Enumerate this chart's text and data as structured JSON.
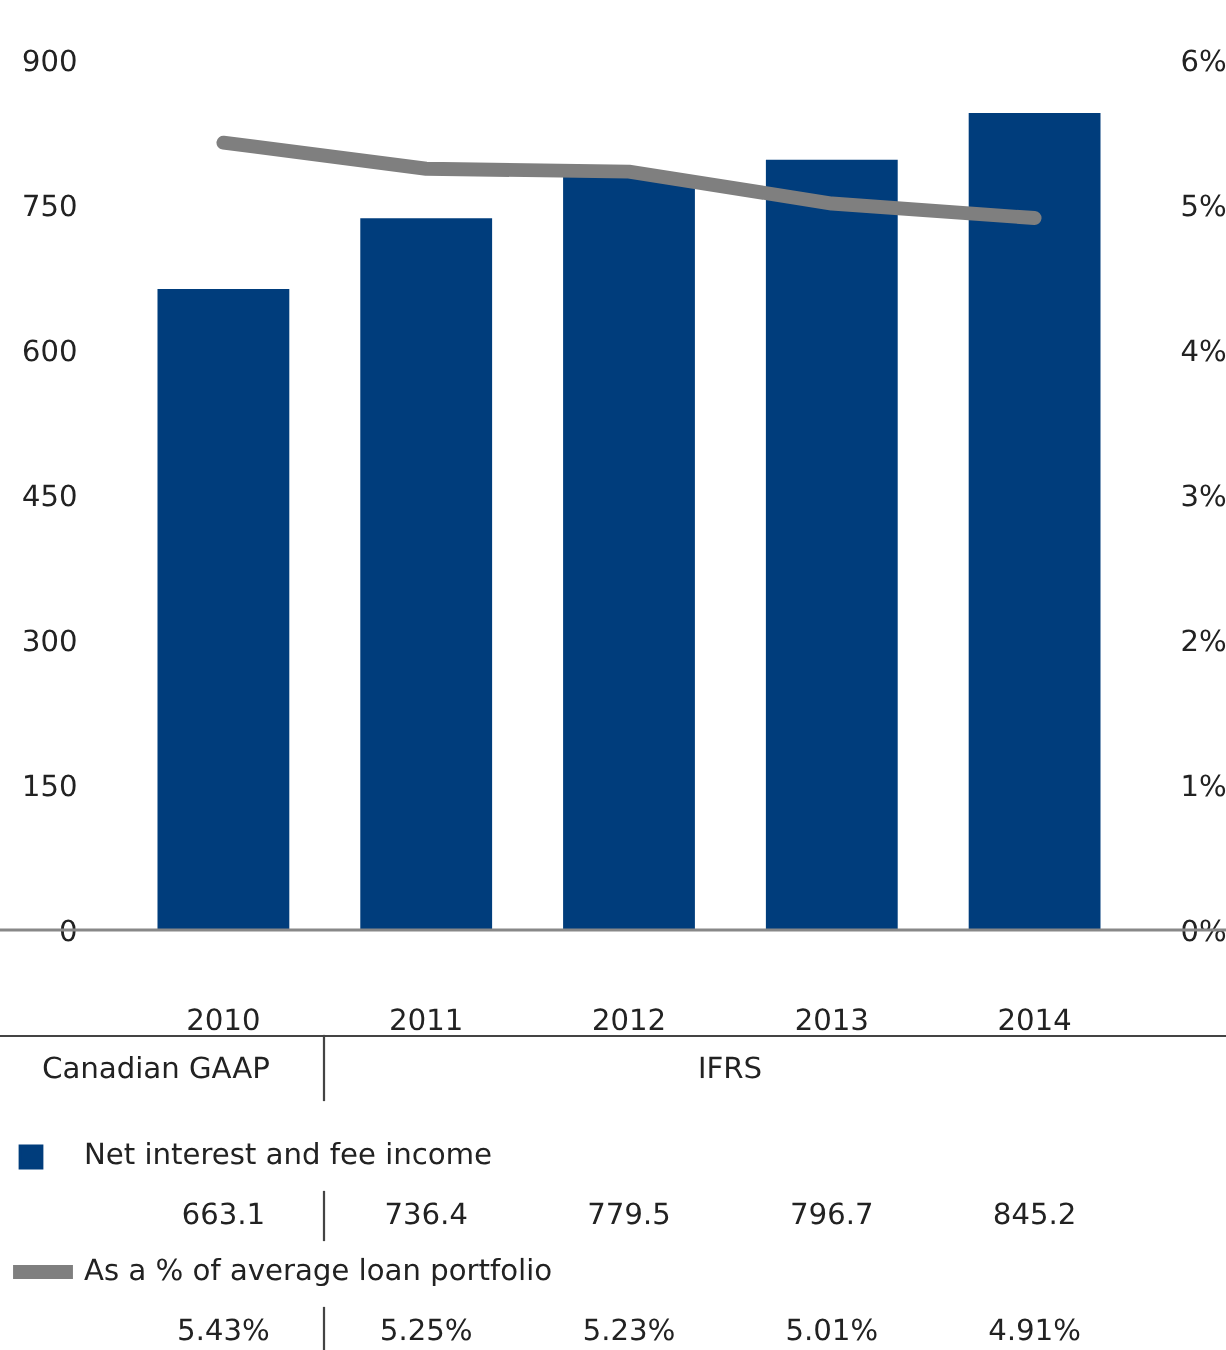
{
  "chart_data": {
    "type": "bar",
    "categories": [
      "2010",
      "2011",
      "2012",
      "2013",
      "2014"
    ],
    "series": [
      {
        "name": "Net interest and fee income",
        "color": "#003d7c",
        "values": [
          663.1,
          736.4,
          779.5,
          796.7,
          845.2
        ],
        "value_labels": [
          "663.1",
          "736.4",
          "779.5",
          "796.7",
          "845.2"
        ]
      },
      {
        "name": "As a % of average loan portfolio",
        "type": "line",
        "axis": "y2",
        "color": "#7f7f7f",
        "values": [
          5.43,
          5.25,
          5.23,
          5.01,
          4.91
        ],
        "value_labels": [
          "5.43%",
          "5.25%",
          "5.23%",
          "5.01%",
          "4.91%"
        ]
      }
    ],
    "ylim": [
      0,
      900
    ],
    "yticks": [
      0,
      150,
      300,
      450,
      600,
      750,
      900
    ],
    "y2lim": [
      0,
      6
    ],
    "y2ticks": [
      {
        "value": 0,
        "label": "0%"
      },
      {
        "value": 1,
        "label": "1%"
      },
      {
        "value": 2,
        "label": "2%"
      },
      {
        "value": 3,
        "label": "3%"
      },
      {
        "value": 4,
        "label": "4%"
      },
      {
        "value": 5,
        "label": "5%"
      },
      {
        "value": 6,
        "label": "6%"
      }
    ],
    "annotations": [
      "Canadian GAAP",
      "IFRS"
    ],
    "legend": "bottom",
    "grid": false,
    "marker": "none",
    "line_style": "solid"
  }
}
